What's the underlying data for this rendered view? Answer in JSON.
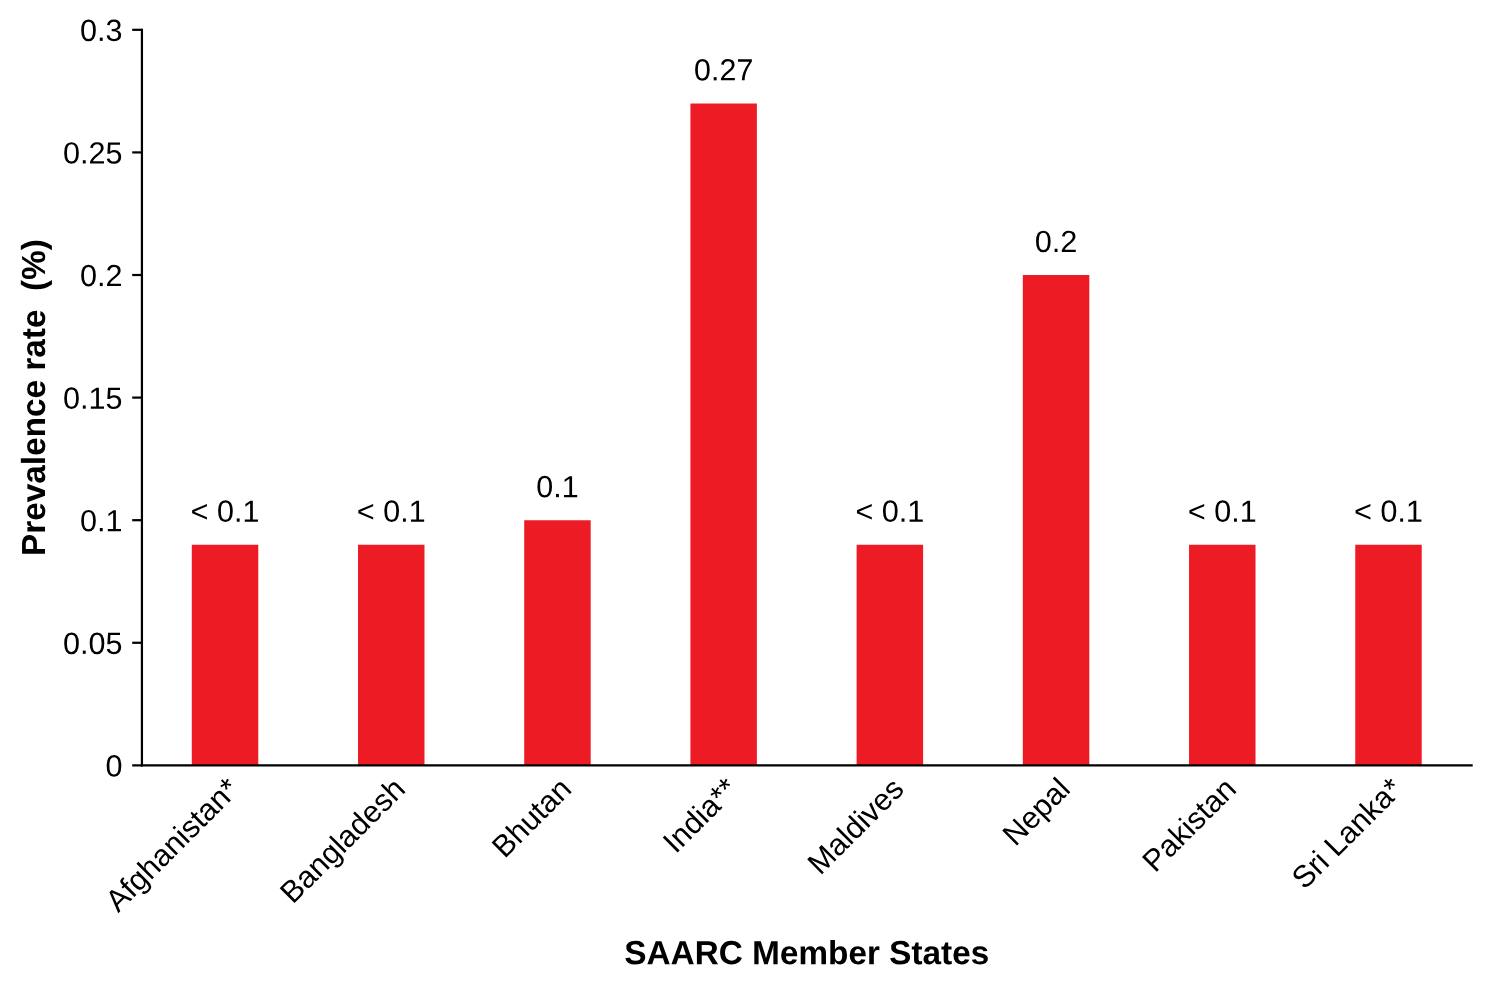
{
  "chart_data": {
    "type": "bar",
    "xlabel": "SAARC Member States",
    "ylabel": "Prevalence rate  (%)",
    "categories": [
      "Afghanistan*",
      "Bangladesh",
      "Bhutan",
      "India**",
      "Maldives",
      "Nepal",
      "Pakistan",
      "Sri Lanka*"
    ],
    "values": [
      0.09,
      0.09,
      0.1,
      0.27,
      0.09,
      0.2,
      0.09,
      0.09
    ],
    "value_labels": [
      "< 0.1",
      "< 0.1",
      "0.1",
      "0.27",
      "< 0.1",
      "0.2",
      "< 0.1",
      "< 0.1"
    ],
    "color": "#ed1c24",
    "ylim": [
      0,
      0.3
    ],
    "yticks": [
      0,
      0.05,
      0.1,
      0.15,
      0.2,
      0.25,
      0.3
    ],
    "grid": false
  }
}
